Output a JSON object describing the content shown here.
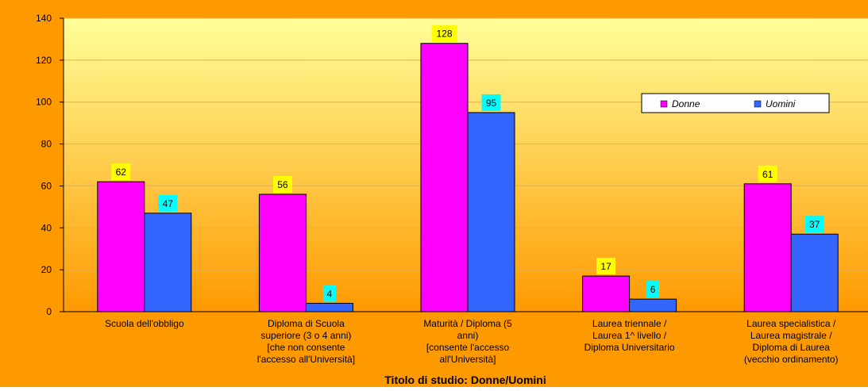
{
  "chart_data": {
    "type": "bar",
    "title": "Titolo di studio: Donne/Uomini",
    "categories": [
      [
        "Scuola dell'obbligo"
      ],
      [
        "Diploma di Scuola",
        "superiore    (3 o 4 anni)",
        "[che non consente",
        "l'accesso all'Università]"
      ],
      [
        "Maturità / Diploma        (5",
        "anni)",
        "[consente l'accesso",
        "all'Università]"
      ],
      [
        "Laurea triennale /",
        "Laurea 1^ livello /",
        "Diploma Universitario"
      ],
      [
        "Laurea specialistica /",
        "Laurea magistrale /",
        "Diploma di Laurea",
        "(vecchio ordinamento)"
      ]
    ],
    "series": [
      {
        "name": "Donne",
        "values": [
          62,
          56,
          128,
          17,
          61
        ],
        "color": "#ff00ff",
        "label_bg": "#ffff00"
      },
      {
        "name": "Uomini",
        "values": [
          47,
          4,
          95,
          6,
          37
        ],
        "color": "#3366ff",
        "label_bg": "#00ffff"
      }
    ],
    "ylim": [
      0,
      140
    ],
    "yticks": [
      0,
      20,
      40,
      60,
      80,
      100,
      120,
      140
    ],
    "grid": true,
    "legend_position": "right",
    "colors": {
      "frame": "#ff9900",
      "plot_top": "#ffff99",
      "plot_bottom": "#ff9900",
      "gridline": "#e2b34c",
      "bar_border": "#000000"
    }
  }
}
